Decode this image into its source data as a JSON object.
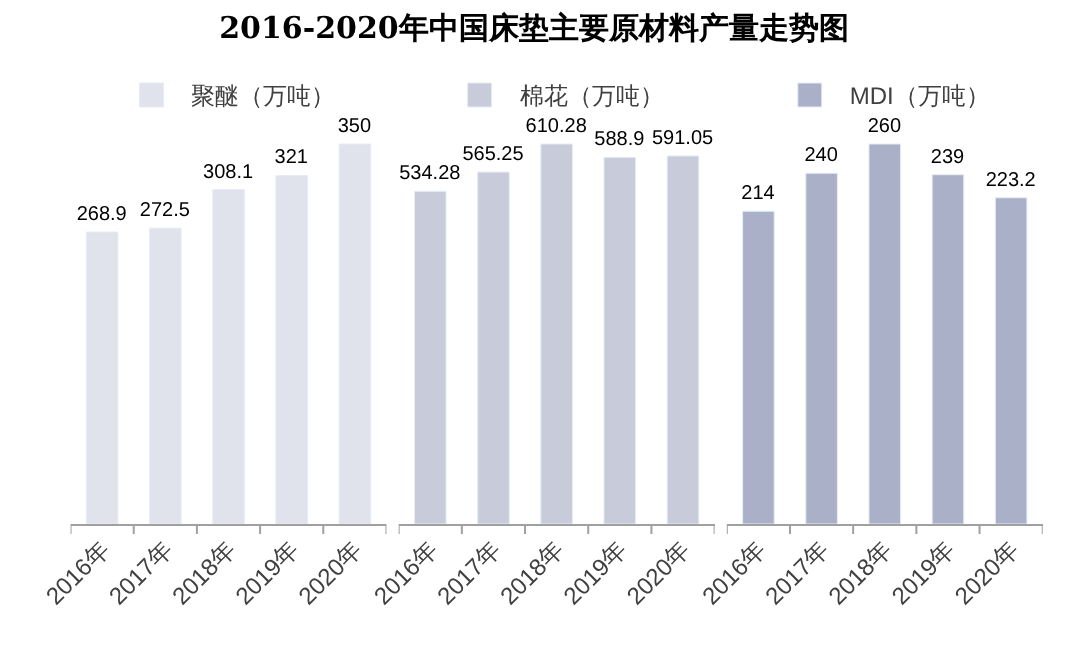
{
  "chart_data": [
    {
      "type": "bar",
      "title": "2016-2020年中国床垫主要原材料产量走势图",
      "categories": [
        "2016年",
        "2017年",
        "2018年",
        "2019年",
        "2020年"
      ],
      "series": [
        {
          "name": "聚醚（万吨）",
          "color": "#e0e3eb",
          "values": [
            268.9,
            272.5,
            308.1,
            321,
            350
          ]
        }
      ],
      "data_labels": true,
      "legend": "top",
      "tick_labels": "x"
    },
    {
      "type": "bar",
      "categories": [
        "2016年",
        "2017年",
        "2018年",
        "2019年",
        "2020年"
      ],
      "series": [
        {
          "name": "棉花（万吨）",
          "color": "#c7cbda",
          "values": [
            534.28,
            565.25,
            610.28,
            588.9,
            591.05
          ]
        }
      ],
      "data_labels": true,
      "legend": "top",
      "tick_labels": "x"
    },
    {
      "type": "bar",
      "categories": [
        "2016年",
        "2017年",
        "2018年",
        "2019年",
        "2020年"
      ],
      "series": [
        {
          "name": "MDI（万吨）",
          "color": "#aab0c7",
          "values": [
            214,
            240,
            260,
            239,
            223.2
          ]
        }
      ],
      "data_labels": true,
      "legend": "top",
      "tick_labels": "x"
    }
  ]
}
